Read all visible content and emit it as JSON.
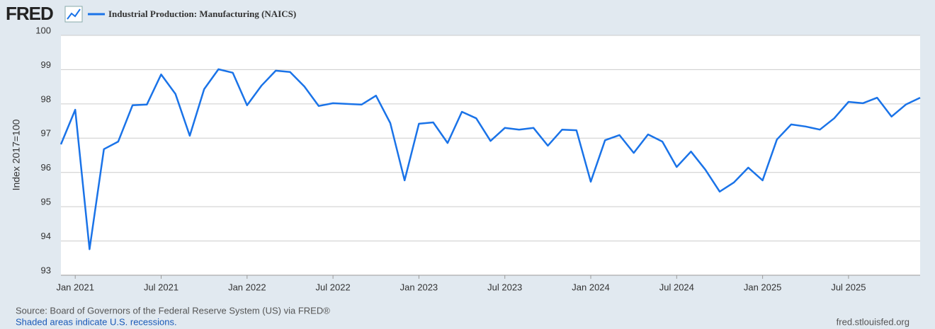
{
  "logo": "FRED",
  "chart_data": {
    "type": "line",
    "x": [
      "2020-12",
      "2021-01",
      "2021-02",
      "2021-03",
      "2021-04",
      "2021-05",
      "2021-06",
      "2021-07",
      "2021-08",
      "2021-09",
      "2021-10",
      "2021-11",
      "2021-12",
      "2022-01",
      "2022-02",
      "2022-03",
      "2022-04",
      "2022-05",
      "2022-06",
      "2022-07",
      "2022-08",
      "2022-09",
      "2022-10",
      "2022-11",
      "2022-12",
      "2023-01",
      "2023-02",
      "2023-03",
      "2023-04",
      "2023-05",
      "2023-06",
      "2023-07",
      "2023-08",
      "2023-09",
      "2023-10",
      "2023-11",
      "2023-12",
      "2024-01",
      "2024-02",
      "2024-03",
      "2024-04",
      "2024-05",
      "2024-06",
      "2024-07",
      "2024-08",
      "2024-09",
      "2024-10",
      "2024-11",
      "2024-12",
      "2025-01",
      "2025-02",
      "2025-03",
      "2025-04",
      "2025-05",
      "2025-06",
      "2025-07",
      "2025-08",
      "2025-09",
      "2025-10",
      "2025-11",
      "2025-12"
    ],
    "series": [
      {
        "name": "Industrial Production: Manufacturing (NAICS)",
        "color": "#1a73e8",
        "values": [
          96.82,
          97.83,
          93.76,
          96.68,
          96.9,
          97.96,
          97.98,
          98.86,
          98.29,
          97.07,
          98.43,
          99.01,
          98.91,
          97.96,
          98.53,
          98.97,
          98.93,
          98.51,
          97.94,
          98.02,
          98.0,
          97.98,
          98.24,
          97.44,
          95.77,
          97.42,
          97.46,
          96.86,
          97.77,
          97.58,
          96.92,
          97.3,
          97.25,
          97.3,
          96.78,
          97.25,
          97.23,
          95.73,
          96.94,
          97.09,
          96.57,
          97.11,
          96.9,
          96.16,
          96.61,
          96.08,
          95.44,
          95.71,
          96.14,
          95.77,
          96.96,
          97.4,
          97.34,
          97.25,
          97.58,
          98.06,
          98.02,
          98.18,
          97.63,
          97.98,
          98.18
        ]
      }
    ],
    "xlim": [
      "2020-12",
      "2025-12"
    ],
    "xticks": [
      {
        "value": "2021-01",
        "label": "Jan 2021"
      },
      {
        "value": "2021-07",
        "label": "Jul 2021"
      },
      {
        "value": "2022-01",
        "label": "Jan 2022"
      },
      {
        "value": "2022-07",
        "label": "Jul 2022"
      },
      {
        "value": "2023-01",
        "label": "Jan 2023"
      },
      {
        "value": "2023-07",
        "label": "Jul 2023"
      },
      {
        "value": "2024-01",
        "label": "Jan 2024"
      },
      {
        "value": "2024-07",
        "label": "Jul 2024"
      },
      {
        "value": "2025-01",
        "label": "Jan 2025"
      },
      {
        "value": "2025-07",
        "label": "Jul 2025"
      }
    ],
    "ylim": [
      93,
      100
    ],
    "yticks": [
      93,
      94,
      95,
      96,
      97,
      98,
      99,
      100
    ],
    "y_label": "Index 2017=100",
    "grid": true,
    "source": "Source: Board of Governors of the Federal Reserve System (US) via FRED®",
    "note": "Shaded areas indicate U.S. recessions.",
    "url": "fred.stlouisfed.org"
  }
}
